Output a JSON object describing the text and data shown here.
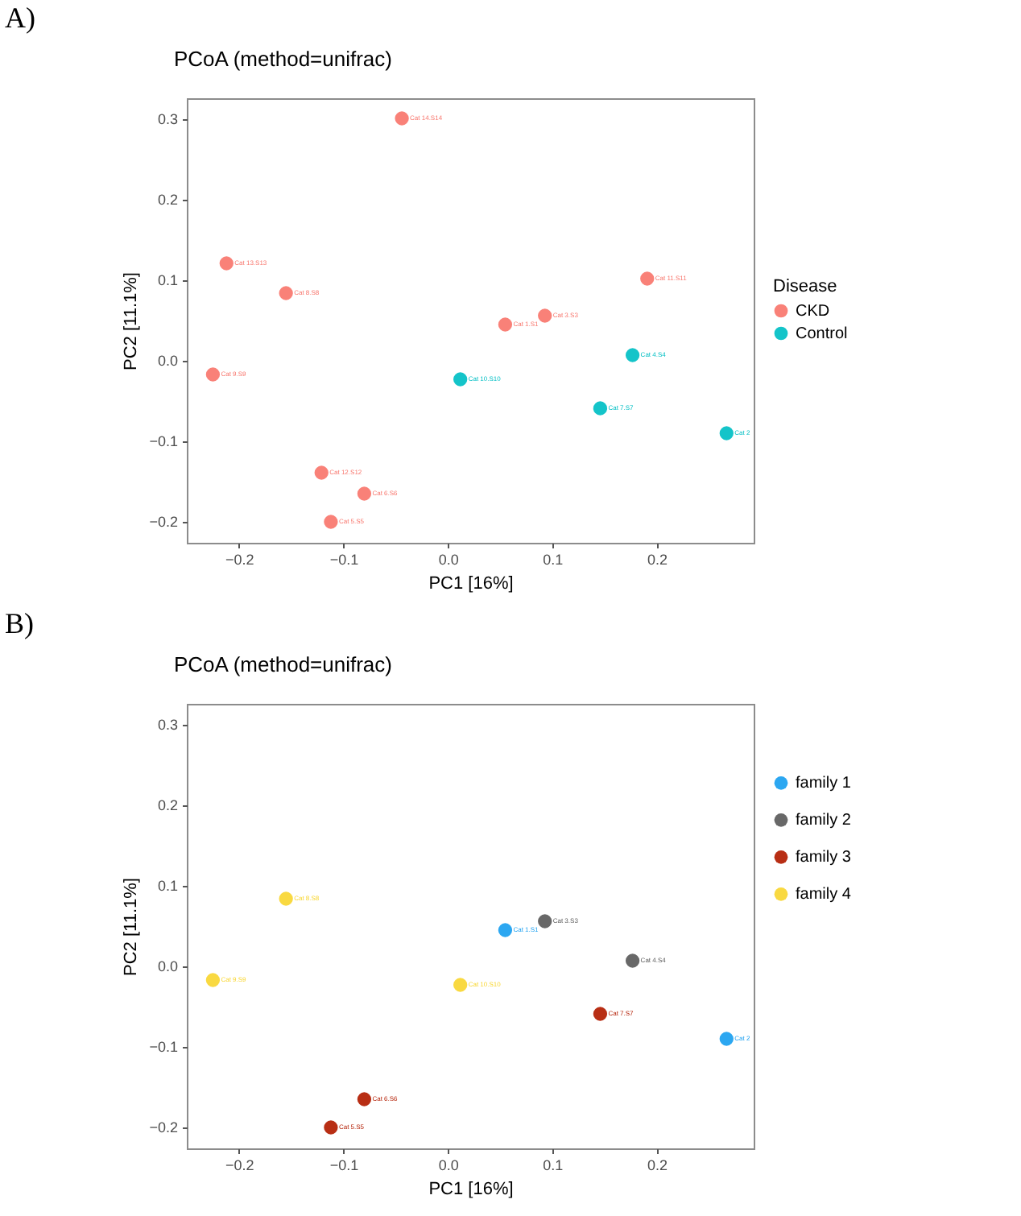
{
  "chart_data": [
    {
      "type": "scatter",
      "title": "PCoA (method=unifrac)",
      "xlabel": "PC1 [16%]",
      "ylabel": "PC2 [11.1%]",
      "legend_title": "Disease",
      "annotations": [
        "A)"
      ],
      "series": [
        {
          "name": "CKD",
          "color": "#f8766d",
          "x": [
            -0.044,
            -0.212,
            -0.155,
            -0.225,
            0.055,
            0.093,
            0.191,
            -0.121,
            -0.08,
            -0.112
          ],
          "values": [
            0.3,
            0.12,
            0.083,
            -0.018,
            0.044,
            0.055,
            0.101,
            -0.14,
            -0.166,
            -0.201
          ],
          "value_labels": [
            "Cat 14.S14",
            "Cat 13.S13",
            "Cat 8.S8",
            "Cat 9.S9",
            "Cat 1.S1",
            "Cat 3.S3",
            "Cat 11.S11",
            "Cat 12.S12",
            "Cat 6.S6",
            "Cat 5.S5"
          ]
        },
        {
          "name": "Control",
          "color": "#00bfc4",
          "x": [
            0.012,
            0.177,
            0.146,
            0.267
          ],
          "values": [
            -0.024,
            0.006,
            -0.06,
            -0.091
          ],
          "value_labels": [
            "Cat 10.S10",
            "Cat 4.S4",
            "Cat 7.S7",
            "Cat 2"
          ]
        }
      ],
      "xlim": [
        -0.25,
        0.293
      ],
      "ylim": [
        -0.227,
        0.325
      ],
      "xticks": [
        {
          "value": -0.2,
          "label": "−0.2"
        },
        {
          "value": -0.1,
          "label": "−0.1"
        },
        {
          "value": 0,
          "label": "0.0"
        },
        {
          "value": 0.1,
          "label": "0.1"
        },
        {
          "value": 0.2,
          "label": "0.2"
        }
      ],
      "yticks": [
        {
          "value": -0.2,
          "label": "−0.2"
        },
        {
          "value": -0.1,
          "label": "−0.1"
        },
        {
          "value": 0,
          "label": "0.0"
        },
        0.1,
        0.2,
        0.3
      ],
      "grid": false,
      "legend": "right",
      "marker": "circle"
    },
    {
      "type": "scatter",
      "title": "PCoA (method=unifrac)",
      "xlabel": "PC1 [16%]",
      "ylabel": "PC2 [11.1%]",
      "annotations": [
        "B)"
      ],
      "series": [
        {
          "name": "family 1",
          "color": "#1a9ff0",
          "x": [
            0.055,
            0.267
          ],
          "values": [
            0.044,
            -0.091
          ],
          "value_labels": [
            "Cat 1.S1",
            "Cat 2"
          ]
        },
        {
          "name": "family 2",
          "color": "#5b5b5b",
          "x": [
            0.093,
            0.177
          ],
          "values": [
            0.055,
            0.006
          ],
          "value_labels": [
            "Cat 3.S3",
            "Cat 4.S4"
          ]
        },
        {
          "name": "family 3",
          "color": "#b21c00",
          "x": [
            -0.112,
            -0.08,
            0.146
          ],
          "values": [
            -0.201,
            -0.166,
            -0.06
          ],
          "value_labels": [
            "Cat 5.S5",
            "Cat 6.S6",
            "Cat 7.S7"
          ]
        },
        {
          "name": "family 4",
          "color": "#f8d631",
          "x": [
            -0.155,
            -0.225,
            0.012
          ],
          "values": [
            0.083,
            -0.018,
            -0.024
          ],
          "value_labels": [
            "Cat 8.S8",
            "Cat 9.S9",
            "Cat 10.S10"
          ]
        }
      ],
      "xlim": [
        -0.25,
        0.293
      ],
      "ylim": [
        -0.227,
        0.325
      ],
      "xticks": [
        {
          "value": -0.2,
          "label": "−0.2"
        },
        {
          "value": -0.1,
          "label": "−0.1"
        },
        {
          "value": 0,
          "label": "0.0"
        },
        {
          "value": 0.1,
          "label": "0.1"
        },
        {
          "value": 0.2,
          "label": "0.2"
        }
      ],
      "yticks": [
        {
          "value": -0.2,
          "label": "−0.2"
        },
        {
          "value": -0.1,
          "label": "−0.1"
        },
        {
          "value": 0,
          "label": "0.0"
        },
        0.1,
        0.2,
        0.3
      ],
      "grid": false,
      "legend": "top right",
      "marker": "circle"
    }
  ]
}
